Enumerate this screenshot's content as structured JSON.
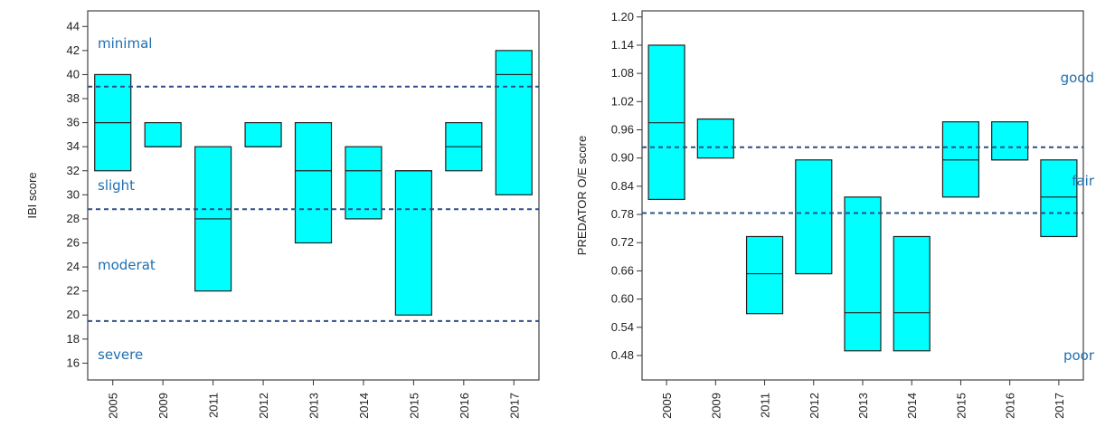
{
  "chart_data": [
    {
      "type": "box",
      "ylabel": "IBI score",
      "categories": [
        "2005",
        "2009",
        "2011",
        "2012",
        "2013",
        "2014",
        "2015",
        "2016",
        "2017"
      ],
      "low": [
        32,
        34,
        22,
        34,
        26,
        28,
        20,
        32,
        30
      ],
      "median": [
        36,
        34,
        28,
        34,
        32,
        32,
        32,
        34,
        40
      ],
      "high": [
        40,
        36,
        34,
        36,
        36,
        34,
        32,
        36,
        42
      ],
      "color": "#00ffff",
      "ylim": [
        14.6,
        45.3
      ],
      "yticks": [
        16,
        18,
        20,
        22,
        24,
        26,
        28,
        30,
        32,
        34,
        36,
        38,
        40,
        42,
        44
      ],
      "thresholds": [
        39,
        28.8,
        19.5
      ],
      "zone_labels": [
        "minimal",
        "slight",
        "moderat",
        "severe"
      ]
    },
    {
      "type": "box",
      "ylabel": "PREDATOR O/E score",
      "categories": [
        "2005",
        "2009",
        "2011",
        "2012",
        "2013",
        "2014",
        "2015",
        "2016",
        "2017"
      ],
      "low": [
        0.812,
        0.9,
        0.569,
        0.654,
        0.49,
        0.49,
        0.817,
        0.896,
        0.733
      ],
      "median": [
        0.975,
        0.983,
        0.654,
        0.654,
        0.571,
        0.571,
        0.896,
        0.896,
        0.817
      ],
      "high": [
        1.14,
        0.983,
        0.733,
        0.896,
        0.817,
        0.733,
        0.977,
        0.977,
        0.896
      ],
      "color": "#00ffff",
      "ylim": [
        0.428,
        1.213
      ],
      "yticks": [
        0.48,
        0.54,
        {
          "value": 0.6,
          "label": "0.60"
        },
        0.66,
        0.72,
        0.78,
        0.84,
        {
          "value": 0.9,
          "label": "0.90"
        },
        0.96,
        1.02,
        1.08,
        1.14,
        {
          "value": 1.2,
          "label": "1.20"
        }
      ],
      "thresholds": [
        0.923,
        0.783
      ],
      "zone_labels": [
        "good",
        "fair",
        "poor"
      ]
    }
  ]
}
